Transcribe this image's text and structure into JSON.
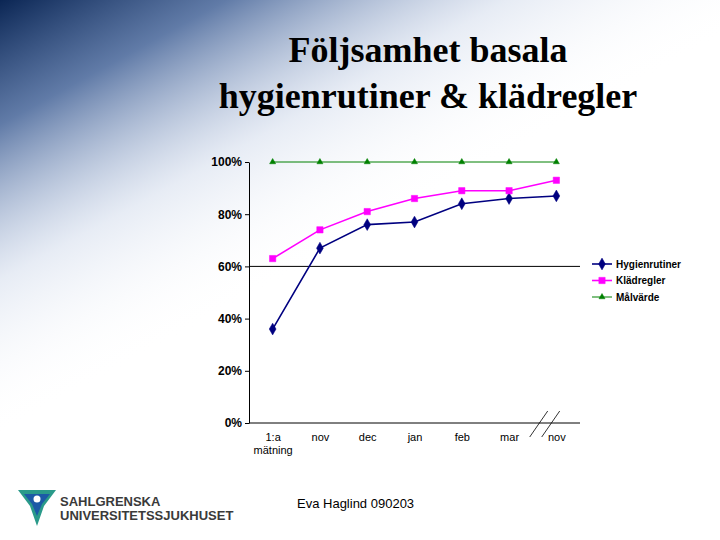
{
  "chart_data": {
    "type": "line",
    "title": "Följsamhet  basala hygienrutiner & klädregler",
    "categories": [
      "1:a mätning",
      "nov",
      "dec",
      "jan",
      "feb",
      "mar",
      "nov"
    ],
    "series": [
      {
        "name": "Hygienrutiner",
        "color": "#000080",
        "marker": "diamond",
        "values": [
          36,
          67,
          76,
          77,
          84,
          86,
          87
        ]
      },
      {
        "name": "Klädregler",
        "color": "#ff00ff",
        "marker": "square",
        "values": [
          63,
          74,
          81,
          86,
          89,
          89,
          93
        ]
      },
      {
        "name": "Målvärde",
        "color": "#008000",
        "marker": "triangle",
        "values": [
          100,
          100,
          100,
          100,
          100,
          100,
          100
        ]
      }
    ],
    "ylim": [
      0,
      100
    ],
    "yticks": [
      {
        "value": 0,
        "label": "0%"
      },
      {
        "value": 20,
        "label": "20%"
      },
      {
        "value": 40,
        "label": "40%"
      },
      {
        "value": 60,
        "label": "60%"
      },
      {
        "value": 80,
        "label": "80%"
      },
      {
        "value": 100,
        "label": "100%"
      }
    ],
    "grid": false,
    "legend": "right",
    "reference_line": 60
  },
  "footer": "Eva Haglind 090203",
  "logo": [
    "SAHLGRENSKA",
    "UNIVERSITETSSJUKHUSET"
  ]
}
